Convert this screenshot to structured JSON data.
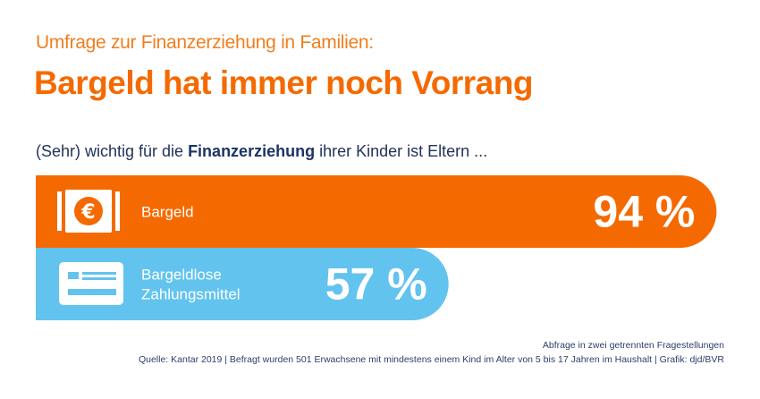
{
  "header": {
    "subtitle": "Umfrage zur Finanzerziehung in Familien:",
    "title": "Bargeld hat immer noch Vorrang"
  },
  "question": {
    "prefix": "(Sehr) wichtig für die ",
    "highlight": "Finanzerziehung",
    "suffix": " ihrer Kinder ist Eltern ..."
  },
  "chart_data": {
    "type": "bar",
    "orientation": "horizontal",
    "categories": [
      "Bargeld",
      "Bargeldlose Zahlungsmittel"
    ],
    "category_lines": [
      [
        "Bargeld"
      ],
      [
        "Bargeldlose",
        "Zahlungsmittel"
      ]
    ],
    "values": [
      94,
      57
    ],
    "value_labels": [
      "94 %",
      "57 %"
    ],
    "unit": "%",
    "xlim": [
      0,
      100
    ],
    "grid": false,
    "legend": "none",
    "icons": [
      "euro-banknote-icon",
      "payment-card-icon"
    ],
    "colors": [
      "#f56a00",
      "#62c3ef"
    ]
  },
  "footer": {
    "note": "Abfrage in zwei getrennten Fragestellungen",
    "source": "Quelle: Kantar 2019 | Befragt wurden 501 Erwachsene mit mindestens einem Kind im Alter von 5 bis 17 Jahren im Haushalt | Grafik: djd/BVR"
  }
}
